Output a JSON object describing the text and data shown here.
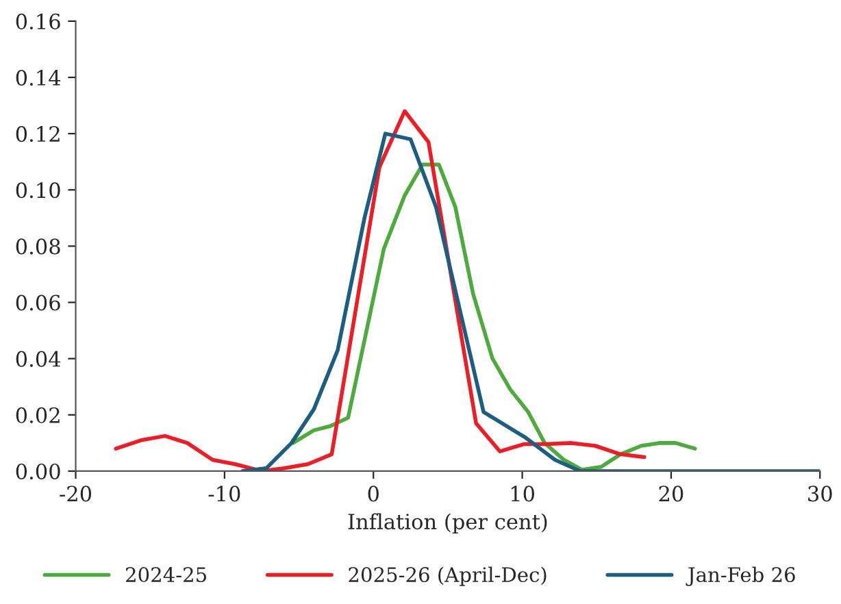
{
  "chart_data": {
    "type": "line",
    "xlabel": "Inflation (per cent)",
    "xlim": [
      -20,
      30
    ],
    "xticks": [
      -20,
      -10,
      0,
      10,
      20,
      30
    ],
    "ylim": [
      0,
      0.16
    ],
    "yticks": [
      {
        "value": 0,
        "label": "0.00"
      },
      {
        "value": 0.02,
        "label": "0.02"
      },
      {
        "value": 0.04,
        "label": "0.04"
      },
      {
        "value": 0.06,
        "label": "0.06"
      },
      {
        "value": 0.08,
        "label": "0.08"
      },
      {
        "value": 0.1,
        "label": "0.10"
      },
      {
        "value": 0.12,
        "label": "0.12"
      },
      {
        "value": 0.14,
        "label": "0.14"
      },
      {
        "value": 0.16,
        "label": "0.16"
      }
    ],
    "grid": false,
    "legend": "bottom",
    "marker": "none",
    "line_style": "solid",
    "series": [
      {
        "name": "2024-25",
        "color": "#4cab3c",
        "x": [
          -5.4,
          -4,
          -2.9,
          -1.7,
          0.7,
          2.1,
          3.3,
          4.4,
          5.5,
          6.7,
          8,
          9.2,
          10.4,
          11.5,
          12.8,
          14,
          15.3,
          16.6,
          18,
          19.2,
          20.3,
          21.6
        ],
        "values": [
          0.01,
          0.0145,
          0.016,
          0.019,
          0.079,
          0.098,
          0.109,
          0.109,
          0.094,
          0.063,
          0.04,
          0.029,
          0.021,
          0.01,
          0.004,
          0.0005,
          0.0015,
          0.006,
          0.009,
          0.01,
          0.01,
          0.008
        ]
      },
      {
        "name": "2025-26 (April-Dec)",
        "color": "#ee1c25",
        "x": [
          -17.3,
          -15.6,
          -14,
          -12.5,
          -10.8,
          -9.3,
          -7.5,
          -6,
          -4.4,
          -2.8,
          0.4,
          2.1,
          3.7,
          6.9,
          8.5,
          10.1,
          11.6,
          13.3,
          14.9,
          16.6,
          18.2
        ],
        "values": [
          0.008,
          0.011,
          0.0125,
          0.01,
          0.004,
          0.0025,
          0.0,
          0.001,
          0.0025,
          0.006,
          0.108,
          0.128,
          0.117,
          0.017,
          0.007,
          0.0096,
          0.0096,
          0.01,
          0.009,
          0.006,
          0.005
        ]
      },
      {
        "name": "Jan-Feb 26",
        "color": "#1b5e82",
        "x": [
          -8.8,
          -7.2,
          -5.5,
          -4,
          -2.4,
          -0.6,
          0.8,
          2.5,
          4.2,
          7.4,
          10.2,
          12.2,
          13.9,
          30
        ],
        "values": [
          0.0,
          0.001,
          0.01,
          0.022,
          0.043,
          0.09,
          0.12,
          0.118,
          0.094,
          0.021,
          0.012,
          0.004,
          0.0,
          0.0
        ]
      }
    ]
  }
}
